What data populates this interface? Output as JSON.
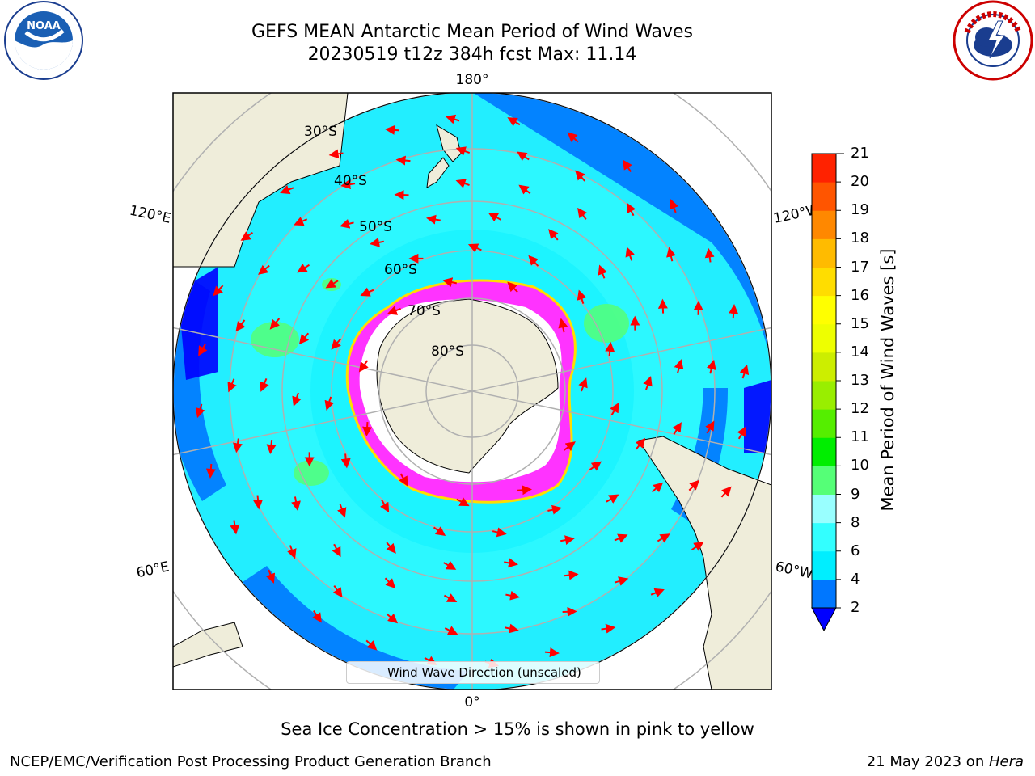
{
  "title_line1": "GEFS MEAN Antarctic Mean Period of Wind Waves",
  "title_line2": "20230519 t12z 384h fcst   Max: 11.14",
  "map": {
    "projection": "south-polar-stereographic",
    "longitude_labels": {
      "top": "180°",
      "bottom": "0°",
      "upper_left": "120°E",
      "upper_right": "120°W",
      "lower_left": "60°E",
      "lower_right": "60°W"
    },
    "latitude_labels": [
      "30°S",
      "40°S",
      "50°S",
      "60°S",
      "70°S",
      "80°S"
    ],
    "legend_label": "Wind Wave Direction (unscaled)",
    "arrow_color": "#ff0000",
    "ice_colors": [
      "#ff33ff",
      "#ffff00"
    ]
  },
  "colorbar": {
    "label": "Mean Period of Wind Waves [s]",
    "ticks": [
      "21",
      "20",
      "19",
      "18",
      "17",
      "16",
      "15",
      "14",
      "13",
      "12",
      "11",
      "10",
      "9",
      "8",
      "6",
      "4",
      "2"
    ],
    "tick_values": [
      2,
      4,
      6,
      8,
      9,
      10,
      11,
      12,
      13,
      14,
      15,
      16,
      17,
      18,
      19,
      20,
      21
    ],
    "colors": [
      "#0077ff",
      "#00eeff",
      "#33ffff",
      "#99ffff",
      "#55ff77",
      "#00ee00",
      "#55ee00",
      "#99ee00",
      "#ccee00",
      "#eeff00",
      "#ffff00",
      "#ffdd00",
      "#ffbb00",
      "#ff8800",
      "#ff5500",
      "#ff2200"
    ],
    "under_color": "#0000ff"
  },
  "footnote": "Sea Ice Concentration > 15% is shown in pink to yellow",
  "footer_left": "NCEP/EMC/Verification Post Processing Product Generation Branch",
  "footer_right_date": "21 May 2023 on ",
  "footer_right_machine": "Hera",
  "logos": {
    "left_text": "NOAA",
    "right_text": "NATIONAL WEATHER SERVICE"
  }
}
